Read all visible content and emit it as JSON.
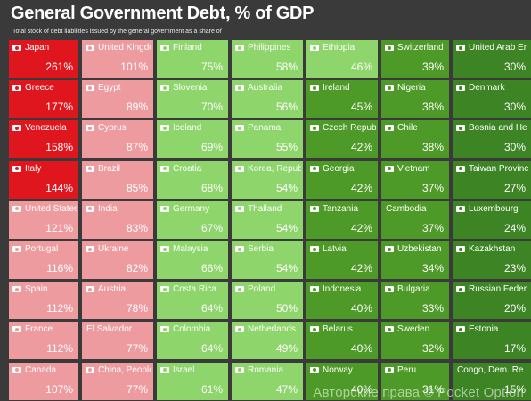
{
  "title": "General Government Debt, % of GDP",
  "subtitle": "Total stock of debt liabilities issued by the general government as a share of",
  "watermark": "Авторские права © Pocket Option",
  "colors": {
    "dark_red": "#e0161e",
    "pink": "#ee9ba0",
    "light_green": "#8ed56b",
    "mid_green": "#4e9a28",
    "dark_green": "#3d8424"
  },
  "chart_data": {
    "type": "table",
    "title": "General Government Debt, % of GDP",
    "subtitle": "Total stock of debt liabilities issued by the general government as a share of",
    "unit": "%",
    "columns": [
      {
        "color": "dark_red",
        "items": [
          {
            "country": "Japan",
            "value": 261,
            "label": "261%"
          },
          {
            "country": "Greece",
            "value": 177,
            "label": "177%"
          },
          {
            "country": "Venezuela",
            "value": 158,
            "label": "158%"
          },
          {
            "country": "Italy",
            "value": 144,
            "label": "144%"
          }
        ]
      },
      {
        "color": "pink",
        "items": [
          {
            "country": "United States",
            "value": 121,
            "label": "121%"
          },
          {
            "country": "Portugal",
            "value": 116,
            "label": "116%"
          },
          {
            "country": "Spain",
            "value": 112,
            "label": "112%"
          },
          {
            "country": "France",
            "value": 112,
            "label": "112%"
          },
          {
            "country": "Canada",
            "value": 107,
            "label": "107%"
          }
        ]
      },
      {
        "color": "pink",
        "items": [
          {
            "country": "United Kingdo",
            "value": 101,
            "label": "101%"
          },
          {
            "country": "Egypt",
            "value": 89,
            "label": "89%"
          },
          {
            "country": "Cyprus",
            "value": 87,
            "label": "87%"
          },
          {
            "country": "Brazil",
            "value": 85,
            "label": "85%"
          },
          {
            "country": "India",
            "value": 83,
            "label": "83%"
          },
          {
            "country": "Ukraine",
            "value": 82,
            "label": "82%"
          },
          {
            "country": "Austria",
            "value": 78,
            "label": "78%"
          },
          {
            "country": "El Salvador",
            "value": 77,
            "label": "77%",
            "noflag": true
          },
          {
            "country": "China, People'",
            "value": 77,
            "label": "77%"
          }
        ]
      },
      {
        "color": "light_green",
        "items": [
          {
            "country": "Finland",
            "value": 75,
            "label": "75%"
          },
          {
            "country": "Slovenia",
            "value": 70,
            "label": "70%"
          },
          {
            "country": "Iceland",
            "value": 69,
            "label": "69%"
          },
          {
            "country": "Croatia",
            "value": 68,
            "label": "68%"
          },
          {
            "country": "Germany",
            "value": 67,
            "label": "67%"
          },
          {
            "country": "Malaysia",
            "value": 66,
            "label": "66%"
          },
          {
            "country": "Costa Rica",
            "value": 64,
            "label": "64%"
          },
          {
            "country": "Colombia",
            "value": 64,
            "label": "64%"
          },
          {
            "country": "Israel",
            "value": 61,
            "label": "61%"
          }
        ]
      },
      {
        "color": "light_green",
        "items": [
          {
            "country": "Philippines",
            "value": 58,
            "label": "58%"
          },
          {
            "country": "Australia",
            "value": 56,
            "label": "56%"
          },
          {
            "country": "Panama",
            "value": 55,
            "label": "55%"
          },
          {
            "country": "Korea, Repub",
            "value": 54,
            "label": "54%"
          },
          {
            "country": "Thailand",
            "value": 54,
            "label": "54%"
          },
          {
            "country": "Serbia",
            "value": 54,
            "label": "54%"
          },
          {
            "country": "Poland",
            "value": 50,
            "label": "50%"
          },
          {
            "country": "Netherlands",
            "value": 49,
            "label": "49%"
          },
          {
            "country": "Romania",
            "value": 47,
            "label": "47%"
          }
        ]
      },
      {
        "color": "mid_green",
        "items": [
          {
            "country": "Ethiopia",
            "value": 46,
            "label": "46%",
            "tile_color": "light_green"
          },
          {
            "country": "Ireland",
            "value": 45,
            "label": "45%"
          },
          {
            "country": "Czech Republ",
            "value": 42,
            "label": "42%"
          },
          {
            "country": "Georgia",
            "value": 42,
            "label": "42%"
          },
          {
            "country": "Tanzania",
            "value": 42,
            "label": "42%"
          },
          {
            "country": "Latvia",
            "value": 42,
            "label": "42%"
          },
          {
            "country": "Indonesia",
            "value": 40,
            "label": "40%"
          },
          {
            "country": "Belarus",
            "value": 40,
            "label": "40%"
          },
          {
            "country": "Norway",
            "value": 40,
            "label": "40%"
          }
        ]
      },
      {
        "color": "mid_green",
        "items": [
          {
            "country": "Switzerland",
            "value": 39,
            "label": "39%"
          },
          {
            "country": "Nigeria",
            "value": 38,
            "label": "38%"
          },
          {
            "country": "Chile",
            "value": 38,
            "label": "38%"
          },
          {
            "country": "Vietnam",
            "value": 37,
            "label": "37%"
          },
          {
            "country": "Cambodia",
            "value": 37,
            "label": "37%",
            "noflag": true
          },
          {
            "country": "Uzbekistan",
            "value": 34,
            "label": "34%"
          },
          {
            "country": "Bulgaria",
            "value": 33,
            "label": "33%"
          },
          {
            "country": "Sweden",
            "value": 32,
            "label": "32%"
          },
          {
            "country": "Peru",
            "value": 31,
            "label": "31%"
          }
        ]
      },
      {
        "color": "dark_green",
        "items": [
          {
            "country": "United Arab Er",
            "value": 30,
            "label": "30%"
          },
          {
            "country": "Denmark",
            "value": 30,
            "label": "30%"
          },
          {
            "country": "Bosnia and He",
            "value": 30,
            "label": "30%"
          },
          {
            "country": "Taiwan Provinc",
            "value": 27,
            "label": "27%"
          },
          {
            "country": "Luxembourg",
            "value": 24,
            "label": "24%"
          },
          {
            "country": "Kazakhstan",
            "value": 23,
            "label": "23%"
          },
          {
            "country": "Russian Feder",
            "value": 20,
            "label": "20%"
          },
          {
            "country": "Estonia",
            "value": 17,
            "label": "17%"
          },
          {
            "country": "Congo, Dem. Re",
            "value": 15,
            "label": "15%",
            "noflag": true
          }
        ]
      }
    ]
  }
}
